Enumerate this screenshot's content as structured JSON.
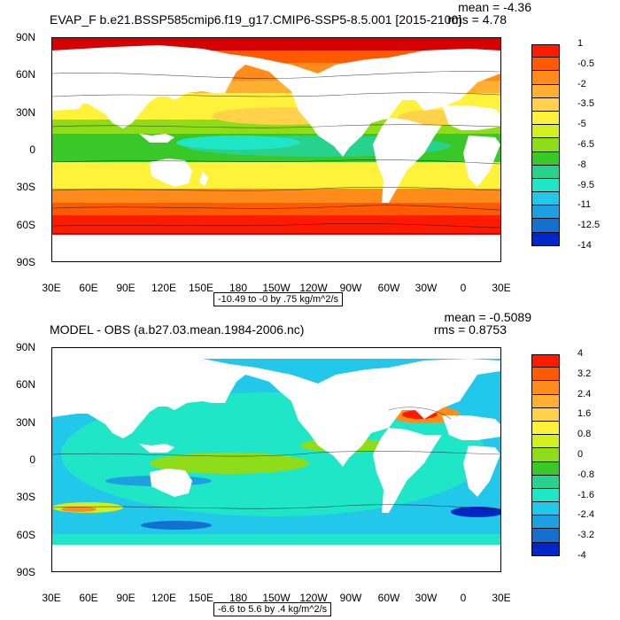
{
  "panels": [
    {
      "id": "top",
      "title": "EVAP_F b.e21.BSSP585cmip6.f19_g17.CMIP6-SSP5-8.5.001 [2015-2100]",
      "mean_text": "mean = -4.36",
      "rms_text": "rms = 4.78",
      "note": "-10.49 to -0 by .75 kg/m^2/s",
      "legend_labels": [
        "1",
        "-0.5",
        "-2",
        "-3.5",
        "-5",
        "-6.5",
        "-8",
        "-9.5",
        "-11",
        "-12.5",
        "-14"
      ],
      "legend_colors": [
        "#d50000",
        "#ff1a00",
        "#ff5a00",
        "#ff8c1a",
        "#ffb030",
        "#ffd24a",
        "#fff23a",
        "#d2ef1e",
        "#8fdd18",
        "#38c828",
        "#26d28c",
        "#20e6c8",
        "#22c8ea",
        "#1e9fe0",
        "#1470d0",
        "#0026c6",
        "#6a00c8",
        "#b000d0",
        "#f000d8",
        "#d0d0d0",
        "#808080"
      ]
    },
    {
      "id": "bottom",
      "title": "MODEL - OBS (a.b27.03.mean.1984-2006.nc)",
      "mean_text": "mean = -0.5089",
      "rms_text": "rms = 0.8753",
      "note": "-6.6 to 5.6 by .4 kg/m^2/s",
      "legend_labels": [
        "4",
        "3.2",
        "2.4",
        "1.6",
        "0.8",
        "0",
        "-0.8",
        "-1.6",
        "-2.4",
        "-3.2",
        "-4"
      ],
      "legend_colors": [
        "#d50000",
        "#ff1a00",
        "#ff5a00",
        "#ff8c1a",
        "#ffb030",
        "#ffd24a",
        "#fff23a",
        "#d2ef1e",
        "#8fdd18",
        "#38c828",
        "#26d28c",
        "#20e6c8",
        "#22c8ea",
        "#1e9fe0",
        "#1470d0",
        "#0026c6",
        "#6a00c8",
        "#b000d0",
        "#f000d8",
        "#d0d0d0",
        "#808080"
      ]
    }
  ],
  "lat_labels": [
    "90N",
    "60N",
    "30N",
    "0",
    "30S",
    "60S",
    "90S"
  ],
  "lon_labels": [
    "30E",
    "60E",
    "90E",
    "120E",
    "150E",
    "180",
    "150W",
    "120W",
    "90W",
    "60W",
    "30W",
    "0",
    "30E"
  ]
}
